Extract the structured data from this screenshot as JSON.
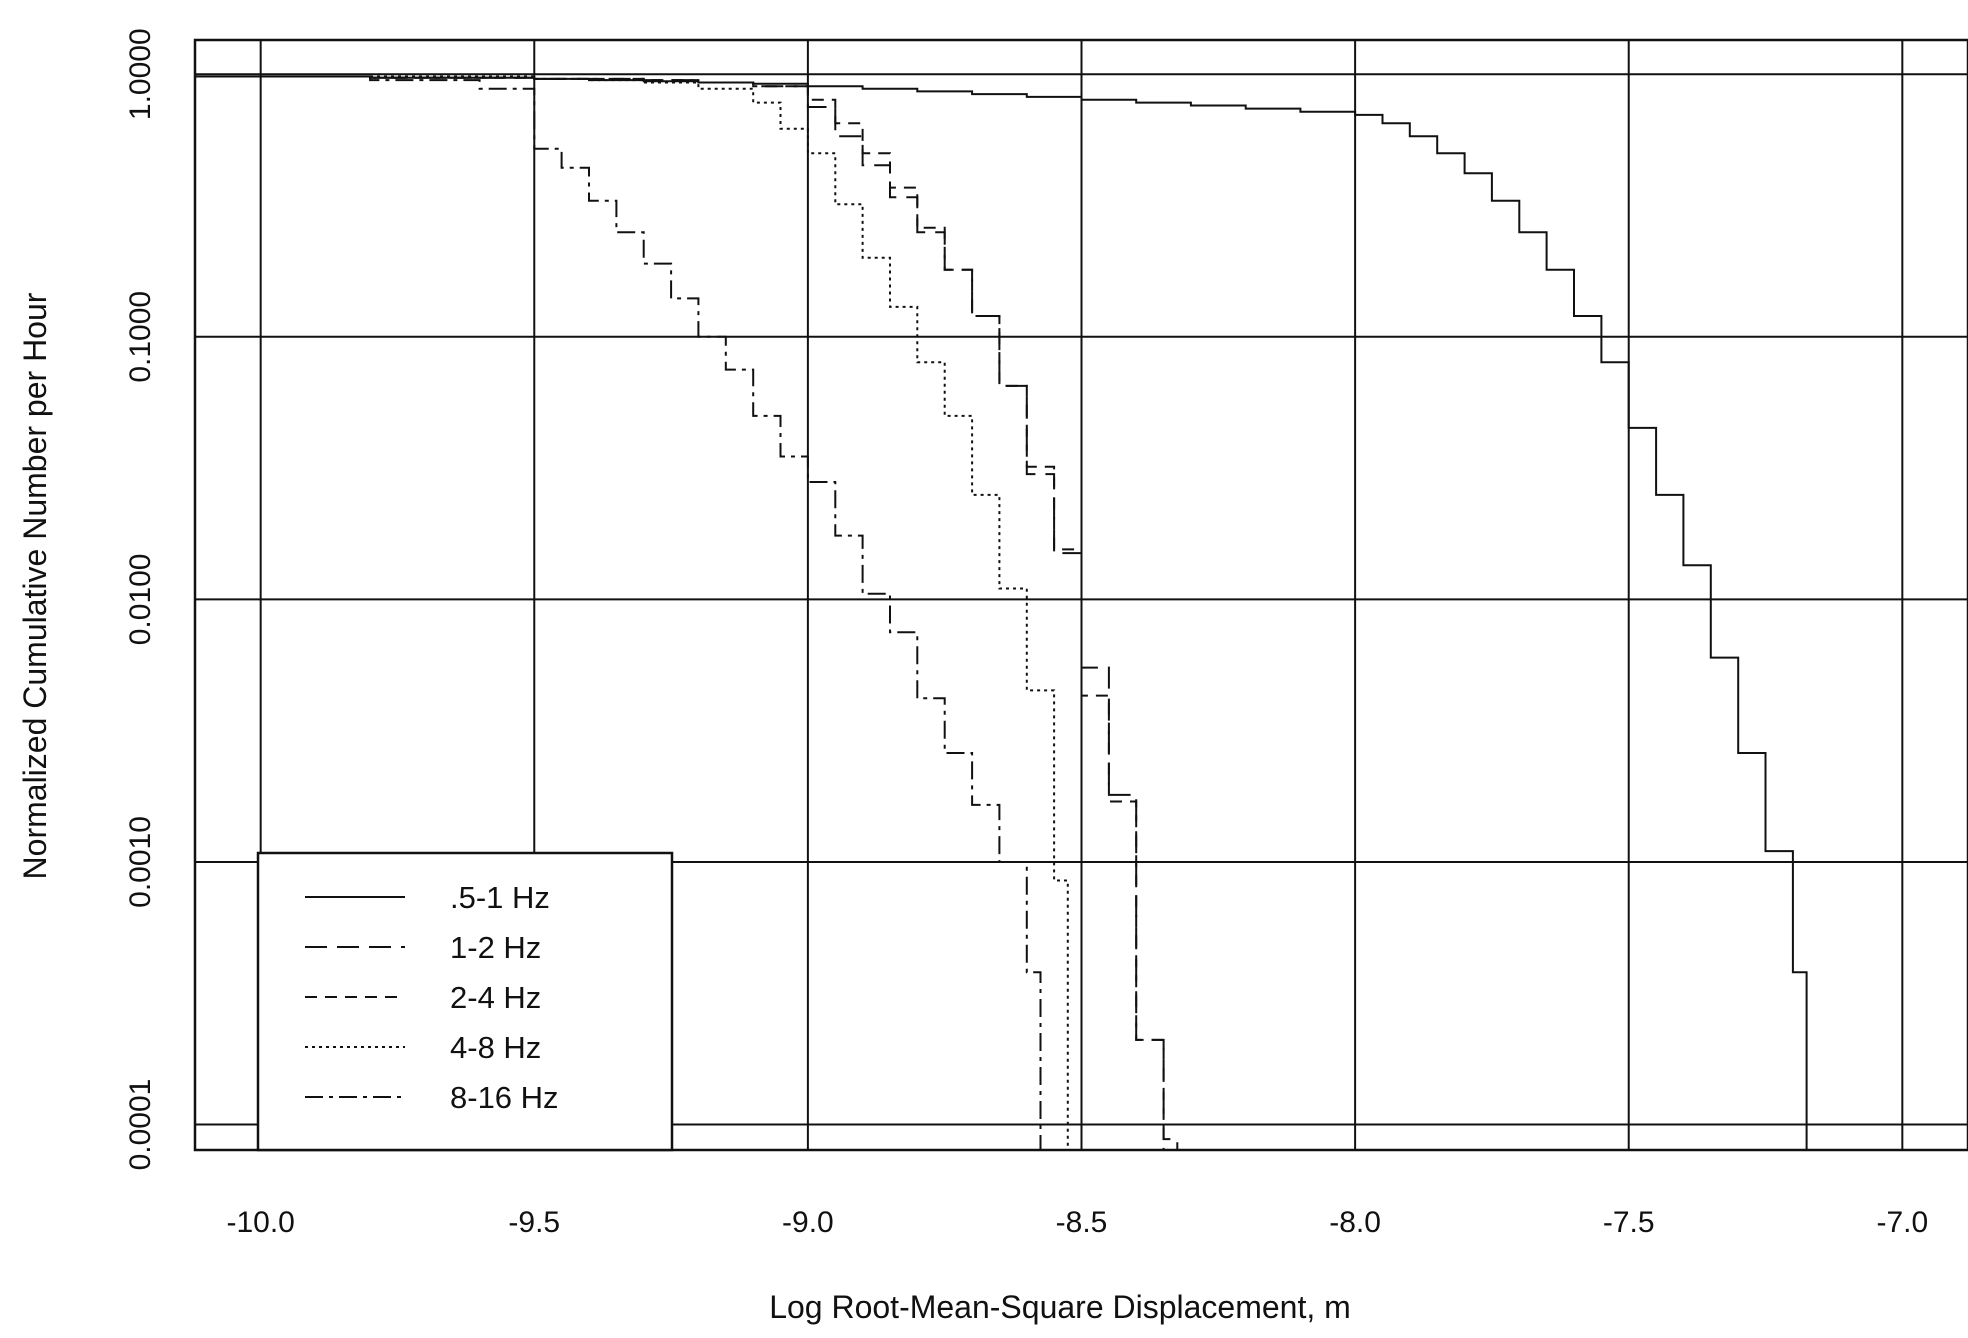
{
  "chart_data": {
    "type": "line",
    "title": "",
    "xlabel": "Log Root-Mean-Square Displacement, m",
    "ylabel": "Normalized Cumulative Number per Hour",
    "xlim": [
      -10.12,
      -6.88
    ],
    "ylim": [
      8e-05,
      1.35
    ],
    "yscale": "log",
    "grid": true,
    "legend_position": "bottom-left",
    "x_ticks": [
      -10.0,
      -9.5,
      -9.0,
      -8.5,
      -8.0,
      -7.5,
      -7.0
    ],
    "x_tick_labels": [
      "-10.0",
      "-9.5",
      "-9.0",
      "-8.5",
      "-8.0",
      "-7.5",
      "-7.0"
    ],
    "y_ticks": [
      0.0001,
      0.001,
      0.01,
      0.1,
      1.0
    ],
    "y_tick_labels": [
      "0.0001",
      "0.0010",
      "0.0100",
      "0.1000",
      "1.0000"
    ],
    "series": [
      {
        "name": ".5-1 Hz",
        "style": "solid",
        "x": [
          -10.12,
          -9.8,
          -9.5,
          -9.4,
          -9.3,
          -9.2,
          -9.1,
          -9.0,
          -8.9,
          -8.8,
          -8.7,
          -8.6,
          -8.5,
          -8.4,
          -8.3,
          -8.2,
          -8.1,
          -8.0,
          -7.95,
          -7.9,
          -7.85,
          -7.8,
          -7.75,
          -7.7,
          -7.65,
          -7.6,
          -7.55,
          -7.5,
          -7.45,
          -7.4,
          -7.35,
          -7.3,
          -7.25,
          -7.2
        ],
        "y": [
          0.98,
          0.97,
          0.96,
          0.95,
          0.94,
          0.93,
          0.92,
          0.9,
          0.88,
          0.86,
          0.84,
          0.82,
          0.8,
          0.78,
          0.76,
          0.74,
          0.72,
          0.7,
          0.65,
          0.58,
          0.5,
          0.42,
          0.33,
          0.25,
          0.18,
          0.12,
          0.08,
          0.045,
          0.025,
          0.0135,
          0.006,
          0.0026,
          0.0011,
          0.00038
        ]
      },
      {
        "name": "1-2 Hz",
        "style": "longdash",
        "x": [
          -10.12,
          -9.8,
          -9.5,
          -9.3,
          -9.2,
          -9.1,
          -9.0,
          -8.95,
          -8.9,
          -8.85,
          -8.8,
          -8.75,
          -8.7,
          -8.65,
          -8.6,
          -8.55,
          -8.5,
          -8.45,
          -8.4,
          -8.35
        ],
        "y": [
          0.98,
          0.97,
          0.96,
          0.95,
          0.93,
          0.9,
          0.75,
          0.58,
          0.45,
          0.34,
          0.25,
          0.18,
          0.12,
          0.065,
          0.03,
          0.015,
          0.0055,
          0.0018,
          0.00021,
          8.8e-05
        ]
      },
      {
        "name": "2-4 Hz",
        "style": "dash",
        "x": [
          -10.12,
          -9.8,
          -9.5,
          -9.3,
          -9.2,
          -9.1,
          -9.0,
          -8.95,
          -8.9,
          -8.85,
          -8.8,
          -8.75,
          -8.7,
          -8.65,
          -8.6,
          -8.55,
          -8.5,
          -8.45,
          -8.4,
          -8.35
        ],
        "y": [
          0.98,
          0.97,
          0.96,
          0.95,
          0.93,
          0.9,
          0.8,
          0.65,
          0.5,
          0.37,
          0.26,
          0.18,
          0.12,
          0.065,
          0.032,
          0.0155,
          0.0043,
          0.0017,
          0.00021,
          8e-05
        ]
      },
      {
        "name": "4-8 Hz",
        "style": "dot",
        "x": [
          -10.12,
          -9.5,
          -9.4,
          -9.3,
          -9.2,
          -9.1,
          -9.05,
          -9.0,
          -8.95,
          -8.9,
          -8.85,
          -8.8,
          -8.75,
          -8.7,
          -8.65,
          -8.6,
          -8.55
        ],
        "y": [
          0.98,
          0.96,
          0.95,
          0.93,
          0.88,
          0.78,
          0.62,
          0.5,
          0.32,
          0.2,
          0.13,
          0.08,
          0.05,
          0.025,
          0.011,
          0.0045,
          0.00085
        ]
      },
      {
        "name": "8-16 Hz",
        "style": "dashdot",
        "x": [
          -10.12,
          -9.8,
          -9.6,
          -9.5,
          -9.45,
          -9.4,
          -9.35,
          -9.3,
          -9.25,
          -9.2,
          -9.15,
          -9.1,
          -9.05,
          -9.0,
          -8.95,
          -8.9,
          -8.85,
          -8.8,
          -8.75,
          -8.7,
          -8.65,
          -8.6
        ],
        "y": [
          0.98,
          0.95,
          0.88,
          0.52,
          0.44,
          0.33,
          0.25,
          0.19,
          0.14,
          0.1,
          0.075,
          0.05,
          0.035,
          0.028,
          0.0175,
          0.0105,
          0.0075,
          0.0042,
          0.0026,
          0.00165,
          0.001,
          0.00038
        ]
      }
    ]
  }
}
